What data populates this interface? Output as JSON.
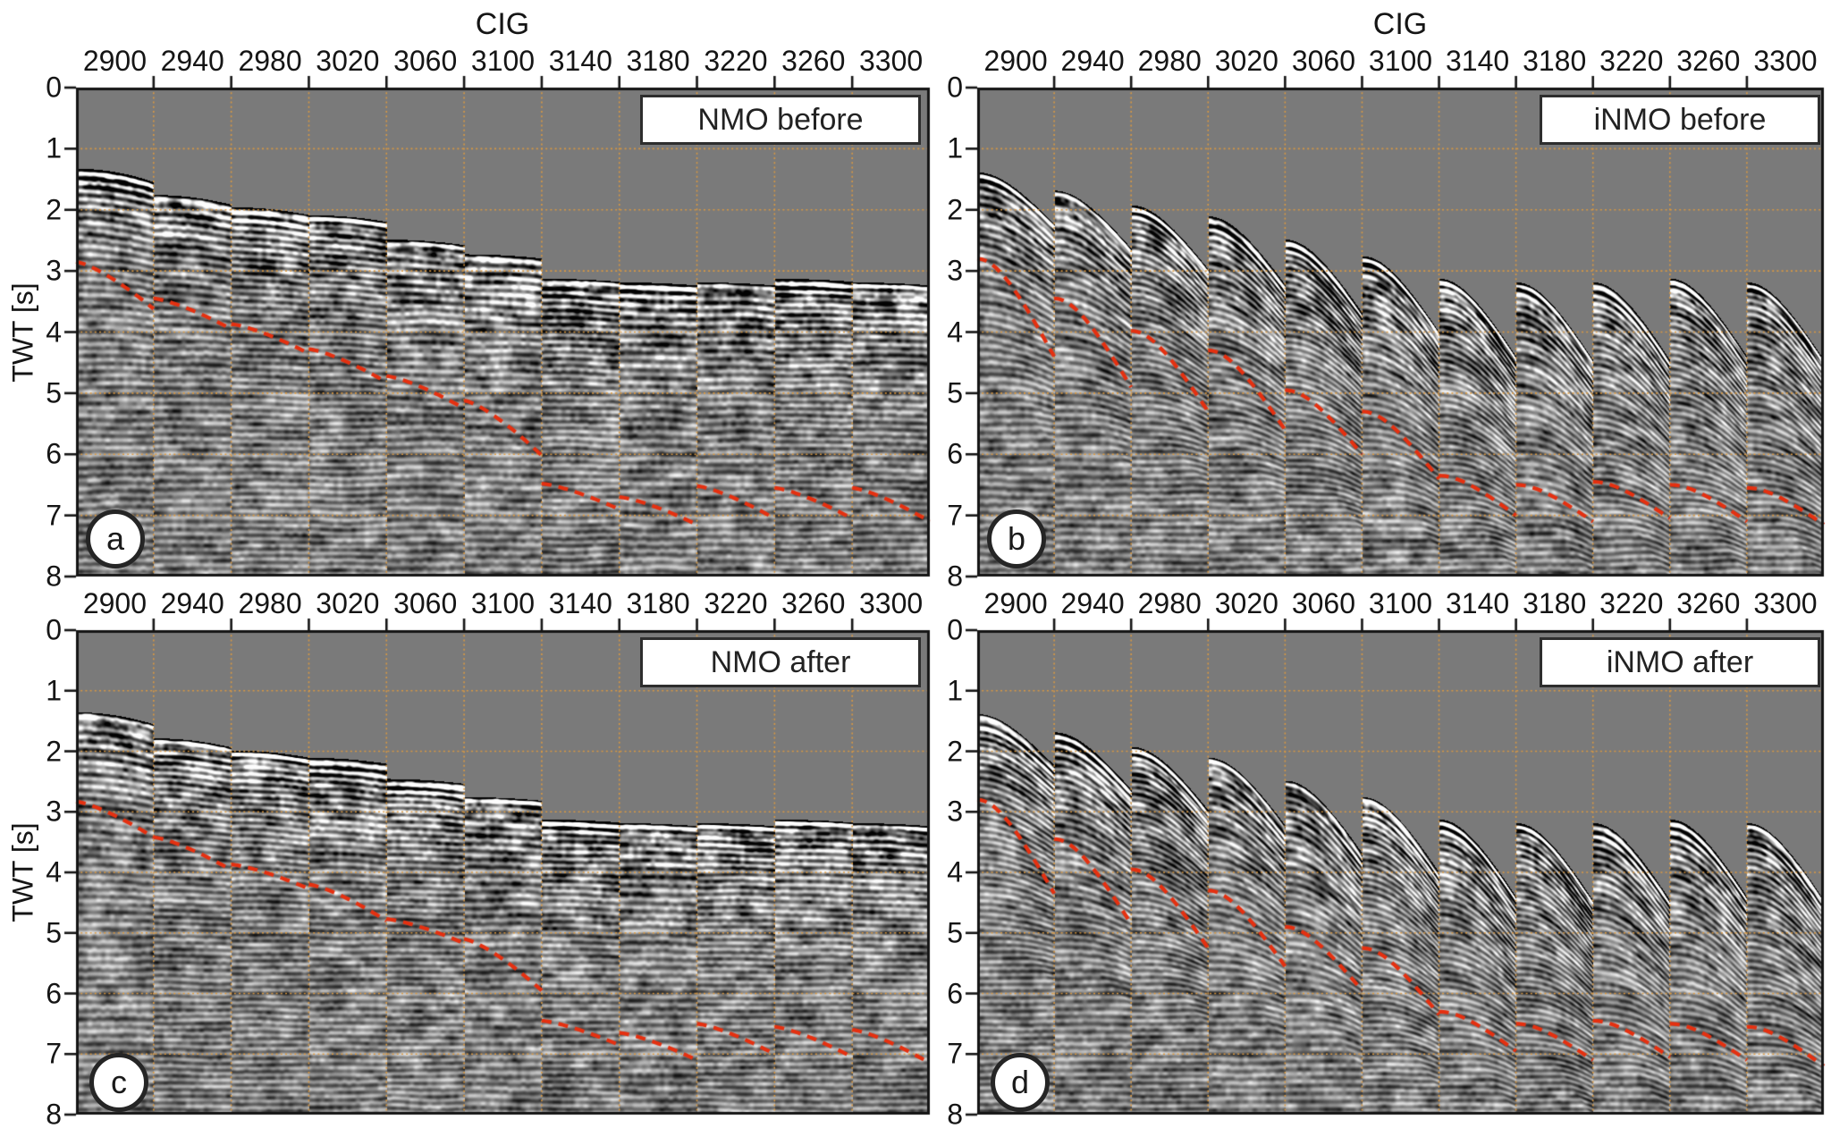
{
  "chart_data": {
    "type": "heatmap",
    "description": "Four seismic common-image-gather (CIG) panels with NMO / iNMO corrections, grayscale wiggle amplitude on gray background, orange grid, red dashed picked horizon",
    "x_axis_title": "CIG",
    "y_axis_label": "TWT [s]",
    "x_tick_labels": [
      "2900",
      "2940",
      "2980",
      "3020",
      "3060",
      "3100",
      "3140",
      "3180",
      "3220",
      "3260",
      "3300"
    ],
    "y_tick_labels": [
      "0",
      "1",
      "2",
      "3",
      "4",
      "5",
      "6",
      "7",
      "8"
    ],
    "ylim": [
      0,
      8
    ],
    "grid": true,
    "colors": {
      "panel_bg": "#7a7a7a",
      "grid": "#dd9a3f",
      "horizon": "#e53010",
      "axis": "#141414",
      "box_border": "#2d2d2d",
      "box_bg": "#ffffff",
      "text": "#151515"
    },
    "panels": [
      {
        "id": "a",
        "position": "top-left",
        "letter": "a",
        "label": "NMO before",
        "correction": "nmo",
        "gather_top_twt_s": [
          1.32,
          1.75,
          1.95,
          2.08,
          2.48,
          2.72,
          3.12,
          3.18,
          3.18,
          3.12,
          3.18
        ],
        "residual_tilt_s": [
          0.22,
          0.16,
          0.13,
          0.11,
          0.09,
          0.07,
          0.05,
          0.05,
          0.05,
          0.05,
          0.05
        ],
        "horizon_twt_s": [
          [
            2.85,
            3.62
          ],
          [
            3.45,
            3.95
          ],
          [
            3.87,
            4.35
          ],
          [
            4.28,
            4.82
          ],
          [
            4.72,
            5.25
          ],
          [
            5.12,
            6.02
          ],
          [
            6.48,
            6.9
          ],
          [
            6.7,
            7.15
          ],
          [
            6.52,
            7.05
          ],
          [
            6.55,
            7.05
          ],
          [
            6.55,
            7.1
          ]
        ]
      },
      {
        "id": "b",
        "position": "top-right",
        "letter": "b",
        "label": "iNMO before",
        "correction": "inmo",
        "gather_top_twt_s": [
          1.38,
          1.68,
          1.92,
          2.1,
          2.48,
          2.75,
          3.12,
          3.18,
          3.18,
          3.12,
          3.18
        ],
        "gather_moveout_s": [
          0.85,
          0.95,
          1.05,
          1.12,
          1.2,
          1.25,
          1.28,
          1.28,
          1.28,
          1.28,
          1.28
        ],
        "horizon_twt_s": [
          [
            2.8,
            4.4
          ],
          [
            3.45,
            4.9
          ],
          [
            3.98,
            5.3
          ],
          [
            4.3,
            5.6
          ],
          [
            4.95,
            6.0
          ],
          [
            5.3,
            6.4
          ],
          [
            6.35,
            7.0
          ],
          [
            6.5,
            7.1
          ],
          [
            6.45,
            7.05
          ],
          [
            6.5,
            7.1
          ],
          [
            6.55,
            7.15
          ]
        ]
      },
      {
        "id": "c",
        "position": "bottom-left",
        "letter": "c",
        "label": "NMO after",
        "correction": "nmo",
        "gather_top_twt_s": [
          1.35,
          1.78,
          1.98,
          2.1,
          2.45,
          2.75,
          3.12,
          3.18,
          3.18,
          3.12,
          3.18
        ],
        "residual_tilt_s": [
          0.2,
          0.15,
          0.12,
          0.1,
          0.08,
          0.06,
          0.05,
          0.05,
          0.05,
          0.05,
          0.05
        ],
        "horizon_twt_s": [
          [
            2.83,
            3.42
          ],
          [
            3.42,
            3.96
          ],
          [
            3.87,
            4.27
          ],
          [
            4.2,
            4.8
          ],
          [
            4.77,
            5.17
          ],
          [
            5.1,
            5.95
          ],
          [
            6.45,
            6.85
          ],
          [
            6.65,
            7.1
          ],
          [
            6.5,
            7.0
          ],
          [
            6.55,
            7.05
          ],
          [
            6.6,
            7.15
          ]
        ]
      },
      {
        "id": "d",
        "position": "bottom-right",
        "letter": "d",
        "label": "iNMO after",
        "correction": "inmo",
        "gather_top_twt_s": [
          1.38,
          1.68,
          1.92,
          2.1,
          2.48,
          2.75,
          3.12,
          3.18,
          3.18,
          3.12,
          3.18
        ],
        "gather_moveout_s": [
          0.85,
          0.95,
          1.05,
          1.12,
          1.2,
          1.25,
          1.28,
          1.28,
          1.28,
          1.28,
          1.28
        ],
        "horizon_twt_s": [
          [
            2.8,
            4.35
          ],
          [
            3.45,
            4.85
          ],
          [
            3.95,
            5.25
          ],
          [
            4.3,
            5.55
          ],
          [
            4.9,
            5.95
          ],
          [
            5.25,
            6.35
          ],
          [
            6.3,
            6.95
          ],
          [
            6.5,
            7.1
          ],
          [
            6.45,
            7.05
          ],
          [
            6.5,
            7.1
          ],
          [
            6.55,
            7.2
          ]
        ]
      }
    ]
  }
}
